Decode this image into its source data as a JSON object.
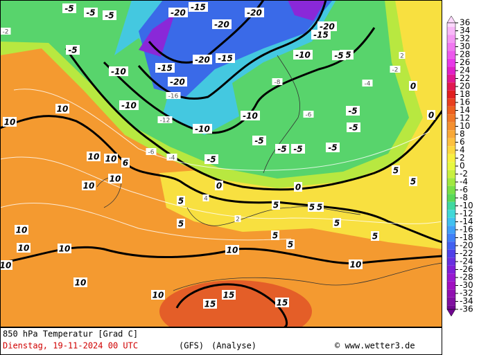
{
  "map": {
    "contour_labels": [
      "10",
      "10",
      "10",
      "10",
      "6",
      "10",
      "10",
      "10",
      "10",
      "10",
      "10",
      "10",
      "10",
      "10",
      "10",
      "15",
      "15",
      "15",
      "5",
      "5",
      "5",
      "5",
      "5",
      "5",
      "5",
      "5",
      "5",
      "5",
      "5",
      "0",
      "0",
      "0",
      "0",
      "-5",
      "-5",
      "-5",
      "-5",
      "-5",
      "-5",
      "-5",
      "-5",
      "-5",
      "-5",
      "-5",
      "-5",
      "-5",
      "-10",
      "-10",
      "-10",
      "-10",
      "-10",
      "-15",
      "-15",
      "-15",
      "-15",
      "-20",
      "-20",
      "-20",
      "-20",
      "-20",
      "-20"
    ],
    "isotherm_labels": [
      "-2",
      "-4",
      "-12",
      "-16",
      "-6",
      "4",
      "2",
      "-2",
      "-8",
      "-6",
      "-4",
      "2"
    ]
  },
  "colorbar": {
    "ticks": [
      36,
      34,
      32,
      30,
      28,
      26,
      24,
      22,
      20,
      18,
      16,
      14,
      12,
      10,
      8,
      6,
      4,
      2,
      0,
      -2,
      -4,
      -6,
      -8,
      -10,
      -12,
      -14,
      -16,
      -18,
      -20,
      -22,
      -24,
      -26,
      -28,
      -30,
      -32,
      -34,
      -36
    ],
    "colors": [
      "#fcd8fc",
      "#f8b8f8",
      "#f498f4",
      "#f078f0",
      "#ec58ec",
      "#e838e8",
      "#e020c8",
      "#e01890",
      "#e01850",
      "#e02020",
      "#e84020",
      "#ec6020",
      "#f07828",
      "#f49030",
      "#f8a838",
      "#fcc040",
      "#fcd840",
      "#f8f040",
      "#e8f840",
      "#c8f040",
      "#a0e840",
      "#78e048",
      "#58d858",
      "#40d8a0",
      "#40d8d8",
      "#40c0f0",
      "#40a0f8",
      "#4080f8",
      "#4060f0",
      "#5040e8",
      "#6830e0",
      "#8020d8",
      "#9818d0",
      "#a010c0",
      "#9010b0",
      "#8010a0",
      "#700890"
    ]
  },
  "footer": {
    "title": "850 hPa Temperatur [Grad C]",
    "date": "Dienstag, 19-11-2024  00 UTC",
    "model": "(GFS)",
    "mode": "(Analyse)",
    "credit": "© www.wetter3.de"
  }
}
